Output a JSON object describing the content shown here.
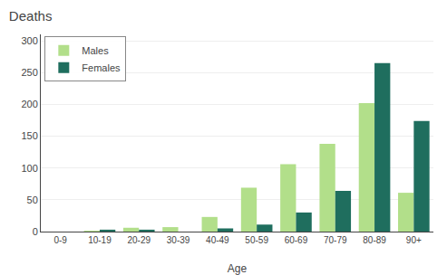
{
  "chart_data": {
    "type": "bar",
    "title": "Deaths",
    "xlabel": "Age",
    "categories": [
      "0-9",
      "10-19",
      "20-29",
      "30-39",
      "40-49",
      "50-59",
      "60-69",
      "70-79",
      "80-89",
      "90+"
    ],
    "series": [
      {
        "name": "Males",
        "color": "#b2df8a",
        "values": [
          0,
          1,
          6,
          7,
          23,
          69,
          106,
          138,
          202,
          61
        ]
      },
      {
        "name": "Females",
        "color": "#1f6e5e",
        "values": [
          0,
          3,
          3,
          0,
          5,
          11,
          30,
          64,
          265,
          174
        ]
      }
    ],
    "ylim": [
      0,
      310
    ],
    "yticks": [
      0,
      50,
      100,
      150,
      200,
      250,
      300
    ],
    "grid": true,
    "legend": "upper left"
  }
}
